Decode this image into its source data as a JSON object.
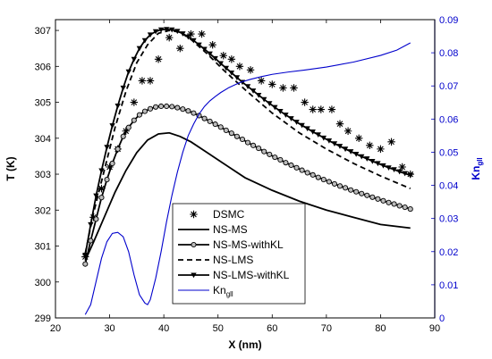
{
  "chart_data": {
    "type": "line",
    "xlabel": "X (nm)",
    "ylabel": "T (K)",
    "y2label": {
      "main": "Kn",
      "sub": "gll"
    },
    "xlim": [
      20,
      90
    ],
    "ylim": [
      299,
      307.3
    ],
    "y2lim": [
      0,
      0.09
    ],
    "xticks": [
      20,
      30,
      40,
      50,
      60,
      70,
      80,
      90
    ],
    "yticks": [
      299,
      300,
      301,
      302,
      303,
      304,
      305,
      306,
      307
    ],
    "y2ticks": [
      0,
      0.01,
      0.02,
      0.03,
      0.04,
      0.05,
      0.06,
      0.07,
      0.08,
      0.09
    ],
    "y2ticklabels": [
      "0",
      "0.01",
      "0.02",
      "0.03",
      "0.04",
      "0.05",
      "0.06",
      "0.07",
      "0.08",
      "0.09"
    ],
    "legend_position": "bottom-center",
    "series": [
      {
        "name": "DSMC",
        "axis": "left",
        "style": "asterisk",
        "color": "#000000",
        "x": [
          25.5,
          27,
          28.5,
          30,
          31.5,
          33,
          34.5,
          36,
          37.5,
          39,
          41,
          43,
          45,
          47,
          49,
          51,
          52.5,
          54,
          56,
          58,
          60,
          62,
          64,
          66,
          67.5,
          69,
          71,
          72.5,
          74,
          76,
          78,
          80,
          82,
          84,
          85.5
        ],
        "y": [
          300.7,
          301.8,
          302.6,
          303.2,
          303.7,
          304.2,
          305.0,
          305.6,
          305.6,
          306.2,
          306.8,
          306.5,
          306.9,
          306.9,
          306.6,
          306.3,
          306.2,
          306.0,
          305.9,
          305.6,
          305.5,
          305.4,
          305.4,
          305.0,
          304.8,
          304.8,
          304.8,
          304.4,
          304.2,
          304.0,
          303.8,
          303.7,
          303.9,
          303.2,
          303.0
        ]
      },
      {
        "name": "NS-MS",
        "axis": "left",
        "style": "solid",
        "color": "#000000",
        "x": [
          25.5,
          27,
          29,
          31,
          33,
          35,
          37,
          39,
          41,
          43,
          45,
          48,
          51,
          55,
          60,
          65,
          70,
          75,
          80,
          85.5
        ],
        "y": [
          300.6,
          301.1,
          301.8,
          302.5,
          303.1,
          303.6,
          303.95,
          304.12,
          304.15,
          304.05,
          303.9,
          303.6,
          303.3,
          302.9,
          302.55,
          302.25,
          302.0,
          301.8,
          301.6,
          301.5
        ]
      },
      {
        "name": "NS-MS-withKL",
        "axis": "left",
        "style": "solid-circle",
        "color": "#000000",
        "x": [
          25.5,
          26.5,
          27.5,
          28.5,
          29.5,
          30.5,
          31.5,
          32.5,
          33.5,
          34.5,
          35.5,
          36.5,
          37.5,
          38.5,
          39.5,
          40.5,
          41.5,
          42.5,
          43.5,
          44.5,
          45.5,
          46.5,
          47.5,
          48.5,
          49.5,
          50.5,
          51.5,
          52.5,
          53.5,
          54.5,
          55.5,
          56.5,
          57.5,
          58.5,
          59.5,
          60.5,
          61.5,
          62.5,
          63.5,
          64.5,
          65.5,
          66.5,
          67.5,
          68.5,
          69.5,
          70.5,
          71.5,
          72.5,
          73.5,
          74.5,
          75.5,
          76.5,
          77.5,
          78.5,
          79.5,
          80.5,
          81.5,
          82.5,
          83.5,
          84.5,
          85.5
        ],
        "y": [
          300.5,
          301.15,
          301.75,
          302.35,
          302.85,
          303.3,
          303.7,
          304.05,
          304.3,
          304.5,
          304.65,
          304.75,
          304.82,
          304.87,
          304.89,
          304.89,
          304.88,
          304.85,
          304.81,
          304.76,
          304.7,
          304.63,
          304.55,
          304.47,
          304.39,
          304.31,
          304.22,
          304.14,
          304.05,
          303.97,
          303.88,
          303.8,
          303.72,
          303.63,
          303.55,
          303.47,
          303.4,
          303.32,
          303.25,
          303.18,
          303.11,
          303.04,
          302.98,
          302.91,
          302.85,
          302.79,
          302.73,
          302.67,
          302.62,
          302.56,
          302.51,
          302.46,
          302.41,
          302.36,
          302.31,
          302.26,
          302.21,
          302.17,
          302.12,
          302.08,
          302.03
        ]
      },
      {
        "name": "NS-LMS",
        "axis": "left",
        "style": "dashed",
        "color": "#000000",
        "x": [
          25.5,
          27,
          29,
          31,
          33,
          35,
          37,
          39,
          41,
          43,
          45,
          48,
          51,
          55,
          60,
          65,
          70,
          75,
          80,
          85.5
        ],
        "y": [
          300.8,
          301.9,
          303.1,
          304.3,
          305.3,
          306.1,
          306.6,
          306.92,
          307.0,
          306.95,
          306.75,
          306.35,
          305.9,
          305.35,
          304.7,
          304.15,
          303.7,
          303.3,
          302.95,
          302.6
        ]
      },
      {
        "name": "NS-LMS-withKL",
        "axis": "left",
        "style": "solid-triangle",
        "color": "#000000",
        "x": [
          25.5,
          26.5,
          27.5,
          28.5,
          29.5,
          30.5,
          31.5,
          32.5,
          33.5,
          34.5,
          35.5,
          36.5,
          37.5,
          38.5,
          39.5,
          40.5,
          41.5,
          42.5,
          43.5,
          44.5,
          45.5,
          46.5,
          47.5,
          48.5,
          49.5,
          50.5,
          51.5,
          52.5,
          53.5,
          54.5,
          55.5,
          56.5,
          57.5,
          58.5,
          59.5,
          60.5,
          61.5,
          62.5,
          63.5,
          64.5,
          65.5,
          66.5,
          67.5,
          68.5,
          69.5,
          70.5,
          71.5,
          72.5,
          73.5,
          74.5,
          75.5,
          76.5,
          77.5,
          78.5,
          79.5,
          80.5,
          81.5,
          82.5,
          83.5,
          84.5,
          85.5
        ],
        "y": [
          300.75,
          301.6,
          302.4,
          303.1,
          303.75,
          304.35,
          304.9,
          305.4,
          305.85,
          306.2,
          306.5,
          306.72,
          306.88,
          306.97,
          307.02,
          307.03,
          307.02,
          306.98,
          306.91,
          306.82,
          306.72,
          306.6,
          306.48,
          306.35,
          306.22,
          306.08,
          305.95,
          305.82,
          305.69,
          305.56,
          305.44,
          305.32,
          305.2,
          305.08,
          304.97,
          304.86,
          304.75,
          304.65,
          304.55,
          304.45,
          304.36,
          304.27,
          304.18,
          304.1,
          304.01,
          303.93,
          303.85,
          303.78,
          303.7,
          303.63,
          303.56,
          303.49,
          303.43,
          303.36,
          303.3,
          303.24,
          303.18,
          303.13,
          303.07,
          303.02,
          302.97
        ]
      },
      {
        "name": "Kn_gll",
        "axis": "right",
        "style": "solid",
        "color": "#0000cc",
        "x": [
          25.5,
          26.5,
          27.5,
          28.5,
          29.5,
          30.5,
          31.5,
          32.5,
          33.5,
          34.5,
          35.5,
          36.5,
          37,
          37.5,
          38.5,
          39.5,
          40.5,
          41.5,
          42.5,
          43.5,
          44.5,
          45.5,
          46.5,
          47.5,
          48.5,
          49.5,
          50.5,
          52,
          54,
          56,
          58,
          60,
          63,
          66,
          70,
          75,
          80,
          83,
          85.5
        ],
        "y": [
          0.001,
          0.004,
          0.011,
          0.018,
          0.023,
          0.0255,
          0.0258,
          0.0245,
          0.02,
          0.013,
          0.007,
          0.0045,
          0.004,
          0.0055,
          0.012,
          0.02,
          0.029,
          0.037,
          0.044,
          0.05,
          0.055,
          0.0585,
          0.0615,
          0.0638,
          0.0655,
          0.0668,
          0.068,
          0.0695,
          0.071,
          0.072,
          0.0728,
          0.0735,
          0.0742,
          0.0748,
          0.0757,
          0.0772,
          0.0792,
          0.0808,
          0.083
        ]
      }
    ],
    "legend_entries": [
      {
        "label": "DSMC",
        "style": "asterisk"
      },
      {
        "label": "NS-MS",
        "style": "solid"
      },
      {
        "label": "NS-MS-withKL",
        "style": "solid-circle"
      },
      {
        "label": "NS-LMS",
        "style": "dashed"
      },
      {
        "label": "NS-LMS-withKL",
        "style": "solid-triangle"
      },
      {
        "label": "Kn",
        "sub": "gll",
        "style": "blue-solid"
      }
    ]
  }
}
